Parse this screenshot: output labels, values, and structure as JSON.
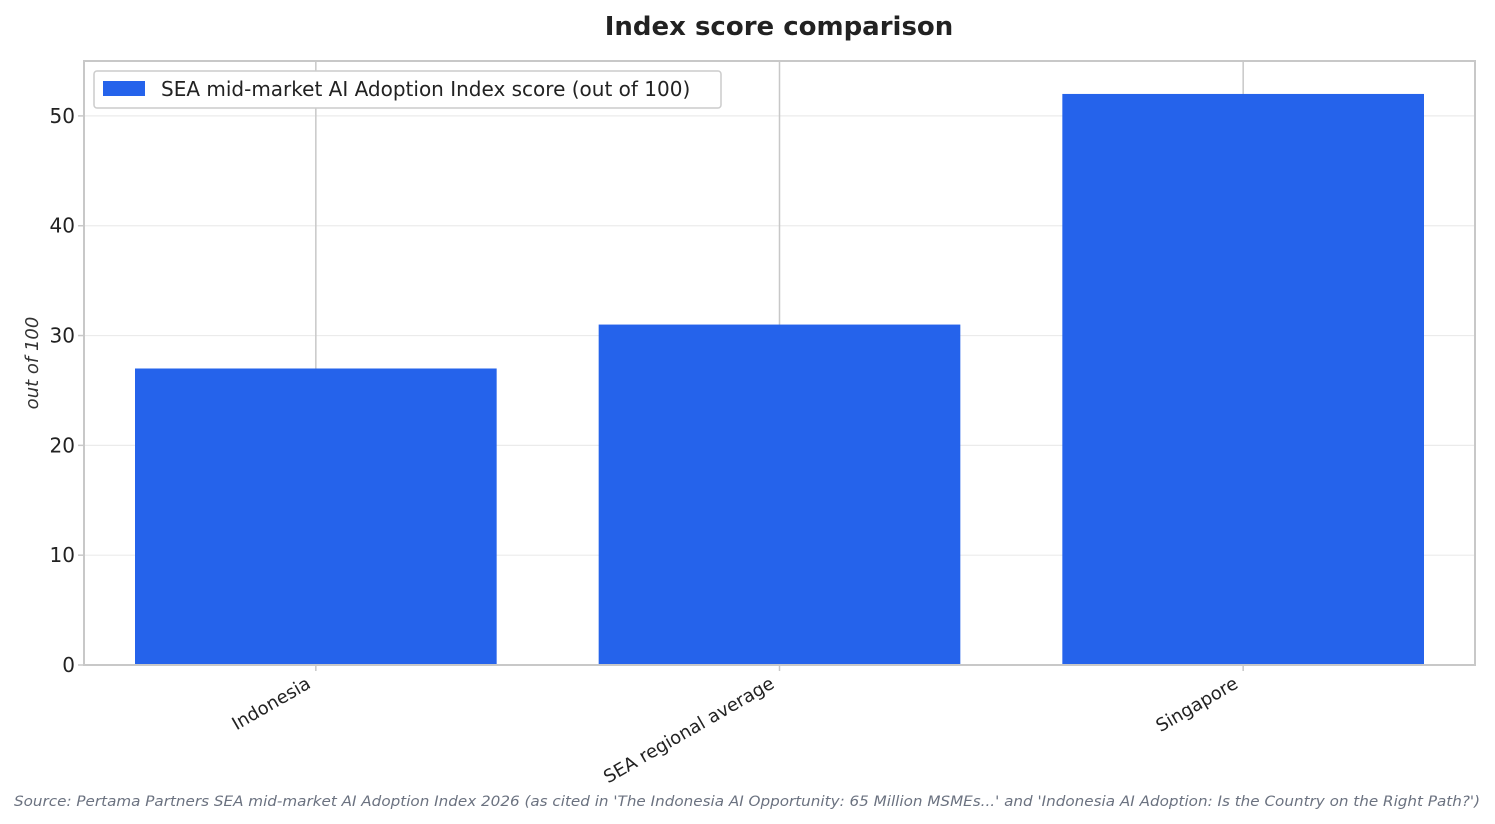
{
  "chart_data": {
    "type": "bar",
    "title": "Index score comparison",
    "xlabel": "",
    "ylabel": "out of 100",
    "categories": [
      "Indonesia",
      "SEA regional average",
      "Singapore"
    ],
    "series": [
      {
        "name": "SEA mid-market AI Adoption Index score (out of 100)",
        "values": [
          27,
          31,
          52
        ],
        "color": "#2563eb"
      }
    ],
    "ylim": [
      0,
      55
    ],
    "yticks": [
      0,
      10,
      20,
      30,
      40,
      50
    ],
    "grid": true,
    "legend_position": "top-left",
    "source": "Source: Pertama Partners SEA mid-market AI Adoption Index 2026 (as cited in 'The Indonesia AI Opportunity: 65 Million MSMEs...' and 'Indonesia AI Adoption: Is the Country on the Right Path?')"
  }
}
